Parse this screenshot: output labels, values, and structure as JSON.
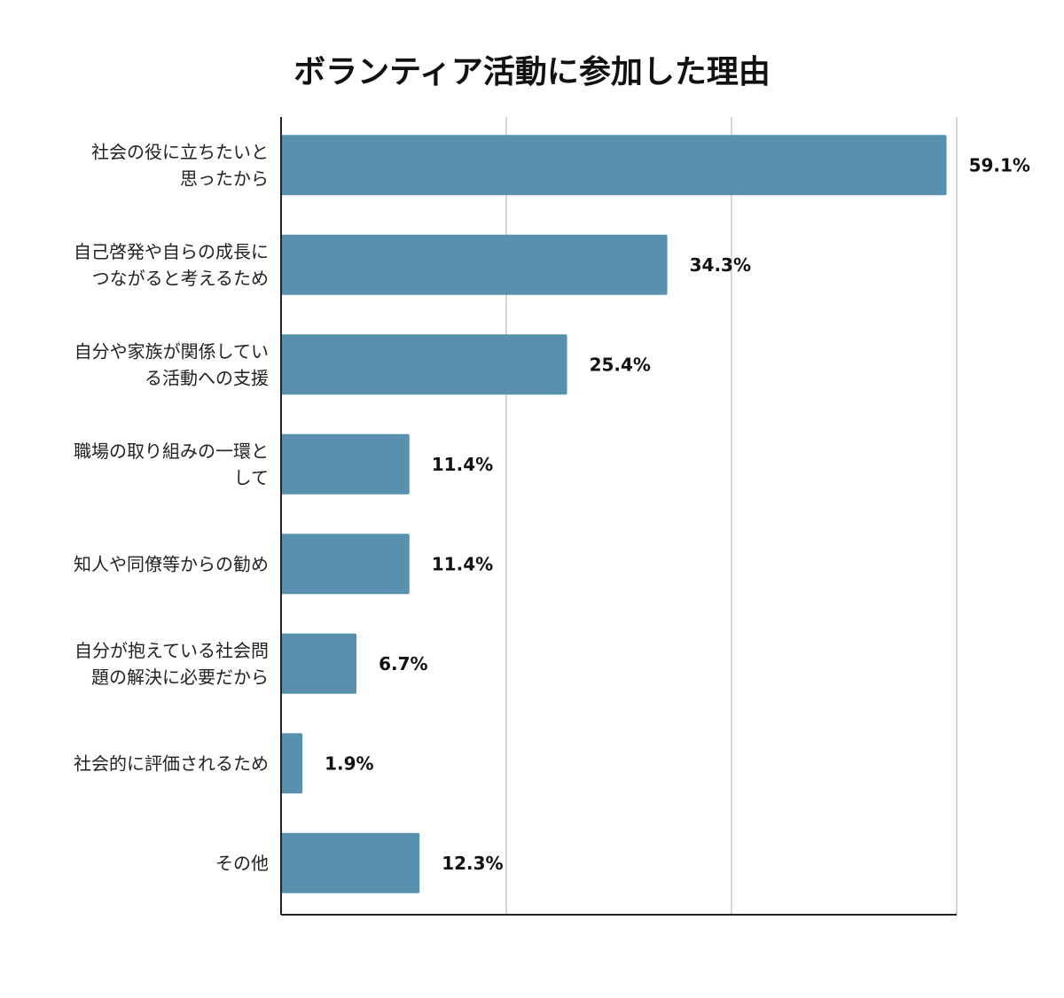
{
  "chart_data": {
    "type": "bar",
    "orientation": "horizontal",
    "title": "ボランティア活動に参加した理由",
    "categories": [
      "社会の役に立ちたいと\n思ったから",
      "自己啓発や自らの成長に\nつながると考えるため",
      "自分や家族が関係してい\nる活動への支援",
      "職場の取り組みの一環と\nして",
      "知人や同僚等からの勧め",
      "自分が抱えている社会問\n題の解決に必要だから",
      "社会的に評価されるため",
      "その他"
    ],
    "values": [
      59.1,
      34.3,
      25.4,
      11.4,
      11.4,
      6.7,
      1.9,
      12.3
    ],
    "value_labels": [
      "59.1%",
      "34.3%",
      "25.4%",
      "11.4%",
      "11.4%",
      "6.7%",
      "1.9%",
      "12.3%"
    ],
    "xlim": [
      0,
      60
    ],
    "gridlines": [
      0,
      20,
      40,
      60
    ],
    "xlabel": "",
    "ylabel": "",
    "bar_color": "#5990ae",
    "grid": true
  }
}
